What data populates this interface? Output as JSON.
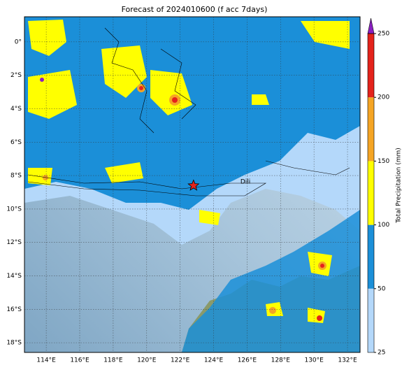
{
  "map": {
    "title": "Forecast of 2024010600 (f acc 7days)",
    "xlim": [
      112.7,
      132.75
    ],
    "ylim": [
      -18.58,
      1.5
    ],
    "xticks": [
      {
        "value": 114,
        "label": "114°E"
      },
      {
        "value": 116,
        "label": "116°E"
      },
      {
        "value": 118,
        "label": "118°E"
      },
      {
        "value": 120,
        "label": "120°E"
      },
      {
        "value": 122,
        "label": "122°E"
      },
      {
        "value": 124,
        "label": "124°E"
      },
      {
        "value": 126,
        "label": "126°E"
      },
      {
        "value": 128,
        "label": "128°E"
      },
      {
        "value": 130,
        "label": "130°E"
      },
      {
        "value": 132,
        "label": "132°E"
      }
    ],
    "yticks": [
      {
        "value": 0,
        "label": "0°"
      },
      {
        "value": -2,
        "label": "2°S"
      },
      {
        "value": -4,
        "label": "4°S"
      },
      {
        "value": -6,
        "label": "6°S"
      },
      {
        "value": -8,
        "label": "8°S"
      },
      {
        "value": -10,
        "label": "10°S"
      },
      {
        "value": -12,
        "label": "12°S"
      },
      {
        "value": -14,
        "label": "14°S"
      },
      {
        "value": -16,
        "label": "16°S"
      },
      {
        "value": -18,
        "label": "18°S"
      }
    ],
    "grid": true,
    "colorbar": {
      "label": "Total Precipitation (mm)",
      "ticks": [
        25,
        50,
        100,
        150,
        200,
        250
      ],
      "colors": [
        "#b4d8fa",
        "#1b8fd8",
        "#ffff00",
        "#f5a524",
        "#e4231b"
      ],
      "extend_color": "#8a1fc2"
    },
    "places": [
      {
        "label": "Dili",
        "lon": 125.6,
        "lat": -8.55
      }
    ],
    "marker": {
      "lon": 122.8,
      "lat": -8.6,
      "color": "#e4231b"
    }
  }
}
